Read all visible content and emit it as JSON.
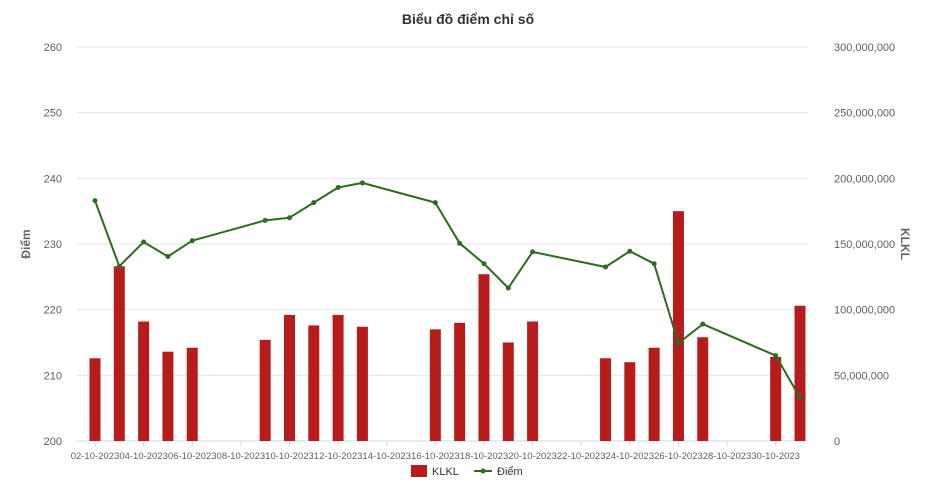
{
  "chart_data": {
    "type": "bar+line",
    "title": "Biểu đồ điểm chỉ số",
    "x": [
      "02-10-2023",
      "03-10-2023",
      "04-10-2023",
      "05-10-2023",
      "06-10-2023",
      "09-10-2023",
      "10-10-2023",
      "11-10-2023",
      "12-10-2023",
      "13-10-2023",
      "16-10-2023",
      "17-10-2023",
      "18-10-2023",
      "19-10-2023",
      "20-10-2023",
      "23-10-2023",
      "24-10-2023",
      "25-10-2023",
      "26-10-2023",
      "27-10-2023",
      "30-10-2023",
      "31-10-2023"
    ],
    "x_axis_range": [
      "02-10-2023",
      "31-10-2023"
    ],
    "x_tick_labels": [
      "02-10-2023",
      "04-10-2023",
      "06-10-2023",
      "08-10-2023",
      "10-10-2023",
      "12-10-2023",
      "14-10-2023",
      "16-10-2023",
      "18-10-2023",
      "20-10-2023",
      "22-10-2023",
      "24-10-2023",
      "26-10-2023",
      "28-10-2023",
      "30-10-2023"
    ],
    "y_left": {
      "label": "Điểm",
      "range": [
        200,
        260
      ],
      "ticks": [
        "200",
        "210",
        "220",
        "230",
        "240",
        "250",
        "260"
      ]
    },
    "y_right": {
      "label": "KLKL",
      "range": [
        0,
        300000000
      ],
      "ticks": [
        "0",
        "50,000,000",
        "100,000,000",
        "150,000,000",
        "200,000,000",
        "250,000,000",
        "300,000,000"
      ]
    },
    "series": [
      {
        "name": "KLKL",
        "type": "bar",
        "axis": "right",
        "color": "#b71c1c",
        "values": [
          63000000,
          133000000,
          91000000,
          68000000,
          71000000,
          77000000,
          96000000,
          88000000,
          96000000,
          87000000,
          85000000,
          90000000,
          127000000,
          75000000,
          91000000,
          63000000,
          60000000,
          71000000,
          175000000,
          79000000,
          64000000,
          103000000
        ]
      },
      {
        "name": "Điểm",
        "type": "line",
        "axis": "left",
        "color": "#2e6b1f",
        "values": [
          236.6,
          226.6,
          230.3,
          228.1,
          230.5,
          233.6,
          234.0,
          236.3,
          238.6,
          239.3,
          236.3,
          230.1,
          227.0,
          223.3,
          228.8,
          226.5,
          228.9,
          227.0,
          214.9,
          217.8,
          213.0,
          206.6
        ]
      }
    ],
    "grid": true,
    "legend": "bottom-center"
  }
}
